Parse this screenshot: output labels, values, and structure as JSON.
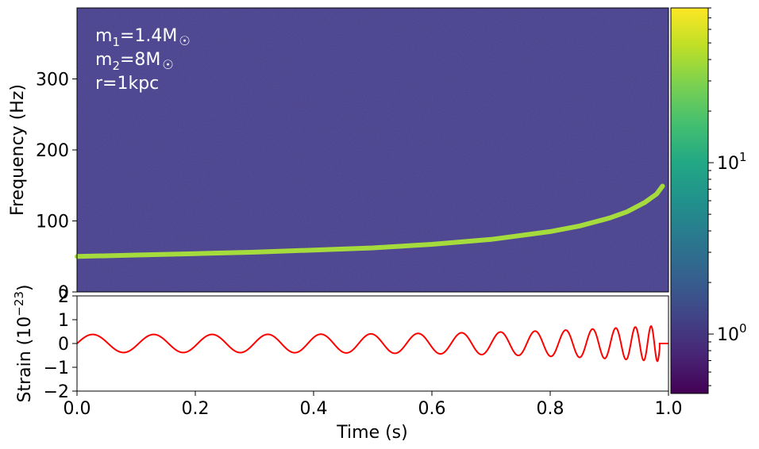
{
  "chart_data": [
    {
      "type": "heatmap",
      "panel": "spectrogram",
      "ylabel": "Frequency (Hz)",
      "xlim": [
        0.0,
        1.0
      ],
      "ylim": [
        0,
        400
      ],
      "yticks": [
        0,
        100,
        200,
        300
      ],
      "ytick_labels": [
        "0",
        "100",
        "200",
        "300"
      ],
      "background_value": 0.85,
      "annotations": [
        {
          "base": "m",
          "sub": "1",
          "rest": "=1.4M",
          "suffix": "☉"
        },
        {
          "base": "m",
          "sub": "2",
          "rest": "=8M",
          "suffix": "☉"
        },
        {
          "base": "r=1kpc",
          "sub": "",
          "rest": "",
          "suffix": ""
        }
      ],
      "chirp_track": {
        "x": [
          0.0,
          0.1,
          0.2,
          0.3,
          0.4,
          0.5,
          0.6,
          0.7,
          0.8,
          0.85,
          0.9,
          0.93,
          0.96,
          0.98,
          0.99
        ],
        "y": [
          50,
          52,
          54,
          56,
          59,
          62,
          67,
          74,
          85,
          93,
          104,
          113,
          126,
          138,
          149
        ]
      }
    },
    {
      "type": "line",
      "panel": "strain",
      "xlabel": "Time (s)",
      "ylabel": "Strain (10⁻²³)",
      "ylabel_base": "Strain (10",
      "ylabel_exp": "−23",
      "ylabel_close": ")",
      "xlim": [
        0.0,
        1.0
      ],
      "ylim": [
        -2,
        2
      ],
      "xticks": [
        0.0,
        0.2,
        0.4,
        0.6,
        0.8,
        1.0
      ],
      "xtick_labels": [
        "0.0",
        "0.2",
        "0.4",
        "0.6",
        "0.8",
        "1.0"
      ],
      "yticks": [
        -2,
        -1,
        0,
        1,
        2
      ],
      "ytick_labels": [
        "−2",
        "−1",
        "0",
        "1",
        "2"
      ],
      "series": [
        {
          "color": "#ff0000",
          "amplitude_start": 0.38,
          "amplitude_end": 0.75,
          "t_merge": 0.985
        }
      ]
    },
    {
      "type": "colorbar",
      "scale": "log",
      "range": [
        0.45,
        80
      ],
      "tick_labels": [
        {
          "value": 1,
          "base": "10",
          "exp": "0"
        },
        {
          "value": 10,
          "base": "10",
          "exp": "1"
        }
      ],
      "colormap": "viridis"
    }
  ],
  "colors": {
    "background_cell": "#463f8b",
    "track": "#a6db3d",
    "strain_line": "#ff0000",
    "annotation_text": "#ffffff"
  }
}
